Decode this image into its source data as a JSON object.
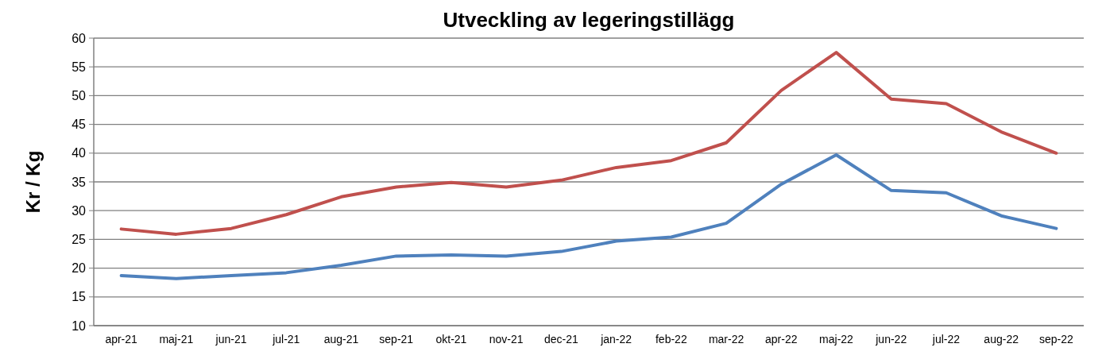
{
  "chart_data": {
    "type": "line",
    "title": "Utveckling av legeringstillägg",
    "ylabel": "Kr / Kg",
    "categories": [
      "apr-21",
      "maj-21",
      "jun-21",
      "jul-21",
      "aug-21",
      "sep-21",
      "okt-21",
      "nov-21",
      "dec-21",
      "jan-22",
      "feb-22",
      "mar-22",
      "apr-22",
      "maj-22",
      "jun-22",
      "jul-22",
      "aug-22",
      "sep-22"
    ],
    "series": [
      {
        "color": "#c0504d",
        "values": [
          26.8,
          25.9,
          26.9,
          29.3,
          32.4,
          34.1,
          34.9,
          34.1,
          35.3,
          37.5,
          38.7,
          41.8,
          50.9,
          57.5,
          49.4,
          48.6,
          43.7,
          40.0
        ]
      },
      {
        "color": "#4f81bd",
        "values": [
          18.7,
          18.2,
          18.7,
          19.2,
          20.5,
          22.1,
          22.3,
          22.1,
          22.9,
          24.7,
          25.4,
          27.8,
          34.6,
          39.7,
          33.5,
          33.1,
          29.1,
          26.9
        ]
      }
    ],
    "ylim": [
      10,
      60
    ],
    "yticks": [
      10,
      15,
      20,
      25,
      30,
      35,
      40,
      45,
      50,
      55,
      60
    ],
    "grid": "y",
    "marker": "none",
    "line_style": "solid"
  }
}
